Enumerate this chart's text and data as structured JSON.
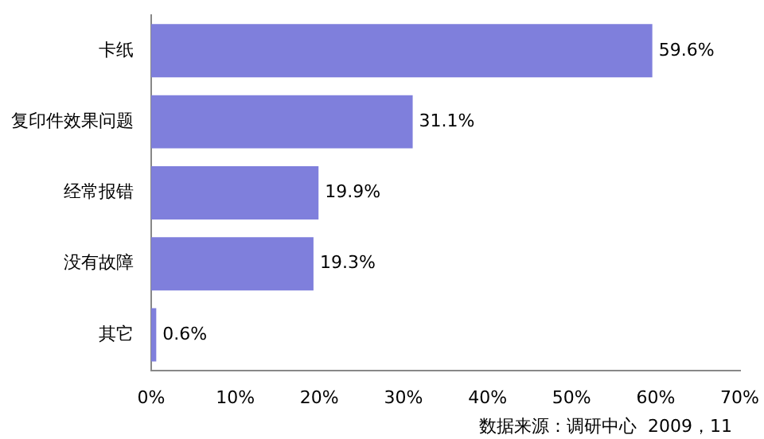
{
  "chart_data": {
    "type": "bar",
    "orientation": "horizontal",
    "categories": [
      "卡纸",
      "复印件效果问题",
      "经常报错",
      "没有故障",
      "其它"
    ],
    "values": [
      59.6,
      31.1,
      19.9,
      19.3,
      0.6
    ],
    "color": "#7f7fdc",
    "value_labels": [
      "59.6%",
      "31.1%",
      "19.9%",
      "19.3%",
      "0.6%"
    ],
    "xlim": [
      0,
      70
    ],
    "xticks": [
      {
        "value": 0,
        "label": "0%"
      },
      {
        "value": 10,
        "label": "10%"
      },
      {
        "value": 20,
        "label": "20%"
      },
      {
        "value": 30,
        "label": "30%"
      },
      {
        "value": 40,
        "label": "40%"
      },
      {
        "value": 50,
        "label": "50%"
      },
      {
        "value": 60,
        "label": "60%"
      },
      {
        "value": 70,
        "label": "70%"
      }
    ],
    "annotations": [
      "数据来源：调研中心  2009，11"
    ],
    "grid": false,
    "legend": false
  }
}
